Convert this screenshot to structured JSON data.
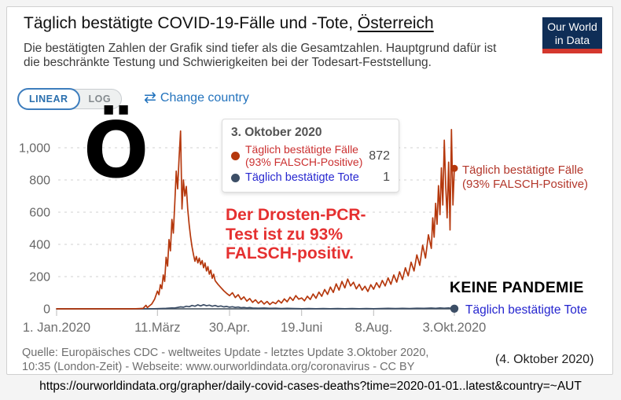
{
  "header": {
    "title_main": "Täglich bestätigte COVID-19-Fälle und -Tote, ",
    "title_country": "Österreich",
    "subtitle_line1": "Die bestätigten Zahlen der Grafik sind tiefer als die Gesamtzahlen. Hauptgrund dafür ist",
    "subtitle_line2": "die beschränkte Testung und Schwierigkeiten bei der Todesart-Feststellung.",
    "logo_line1": "Our World",
    "logo_line2": "in Data"
  },
  "controls": {
    "linear": "LINEAR",
    "log": "LOG",
    "change_country_icon": "⇄",
    "change_country": "Change country"
  },
  "tooltip": {
    "date": "3. Oktober 2020",
    "cases_label_line1": "Täglich bestätigte Fälle",
    "cases_label_line2": "(93% FALSCH-Positive)",
    "cases_value": "872",
    "deaths_label": "Täglich bestätigte Tote",
    "deaths_value": "1"
  },
  "annotations": {
    "big_letter": "Ö",
    "pcr_claim_line1": "Der Drosten-PCR-",
    "pcr_claim_line2": "Test ist zu 93%",
    "pcr_claim_line3": "FALSCH-positiv.",
    "no_pandemic": "KEINE PANDEMIE",
    "cases_series_label_line1": "Täglich bestätigte Fälle",
    "cases_series_label_line2": "(93% FALSCH-Positive)",
    "deaths_series_label": "Täglich bestätigte Tote",
    "date_note": "(4. Oktober 2020)"
  },
  "footer": {
    "source_line1": "Quelle: Europäisches CDC - weltweites Update - letztes Update 3.Oktober 2020,",
    "source_line2": "10:35 (London-Zeit) - Webseite: www.ourworldindata.org/coronavirus - CC BY",
    "url": "https://ourworldindata.org/grapher/daily-covid-cases-deaths?time=2020-01-01..latest&country=~AUT"
  },
  "colors": {
    "cases_line": "#b5380d",
    "deaths_line": "#3c4e66",
    "accent_blue": "#2373bd",
    "annotation_red": "#e53030",
    "logo_navy": "#0f2e57",
    "logo_red": "#d4382e"
  },
  "chart_data": {
    "type": "line",
    "title": "Täglich bestätigte COVID-19-Fälle und -Tote, Österreich",
    "xlabel": "",
    "ylabel": "",
    "grid": true,
    "ylim": [
      0,
      1150
    ],
    "xlim_days_since_2020_01_01": [
      0,
      276
    ],
    "y_ticks": [
      0,
      200,
      400,
      600,
      800,
      1000
    ],
    "y_tick_labels": [
      "0",
      "200",
      "400",
      "600",
      "800",
      "1,000"
    ],
    "x_ticks": [
      {
        "day": 0,
        "label": "1. Jan.2020"
      },
      {
        "day": 70,
        "label": "11.März"
      },
      {
        "day": 120,
        "label": "30.Apr."
      },
      {
        "day": 170,
        "label": "19.Juni"
      },
      {
        "day": 220,
        "label": "8.Aug."
      },
      {
        "day": 276,
        "label": "3.Okt.2020"
      }
    ],
    "series": [
      {
        "name": "Täglich bestätigte Fälle (93% FALSCH-Positive)",
        "color": "#b5380d",
        "end_value": 872,
        "points": [
          [
            0,
            0
          ],
          [
            10,
            0
          ],
          [
            20,
            0
          ],
          [
            30,
            0
          ],
          [
            40,
            0
          ],
          [
            50,
            0
          ],
          [
            55,
            1
          ],
          [
            58,
            2
          ],
          [
            60,
            3
          ],
          [
            62,
            22
          ],
          [
            63,
            8
          ],
          [
            64,
            15
          ],
          [
            66,
            30
          ],
          [
            68,
            60
          ],
          [
            70,
            110
          ],
          [
            71,
            88
          ],
          [
            72,
            150
          ],
          [
            73,
            125
          ],
          [
            74,
            210
          ],
          [
            75,
            170
          ],
          [
            76,
            320
          ],
          [
            77,
            265
          ],
          [
            78,
            430
          ],
          [
            79,
            360
          ],
          [
            80,
            555
          ],
          [
            81,
            470
          ],
          [
            82,
            650
          ],
          [
            83,
            855
          ],
          [
            84,
            745
          ],
          [
            85,
            935
          ],
          [
            86,
            1104
          ],
          [
            87,
            620
          ],
          [
            88,
            800
          ],
          [
            89,
            700
          ],
          [
            90,
            760
          ],
          [
            91,
            620
          ],
          [
            92,
            520
          ],
          [
            93,
            445
          ],
          [
            94,
            385
          ],
          [
            95,
            335
          ],
          [
            96,
            295
          ],
          [
            97,
            325
          ],
          [
            98,
            285
          ],
          [
            99,
            315
          ],
          [
            100,
            275
          ],
          [
            101,
            300
          ],
          [
            102,
            255
          ],
          [
            103,
            285
          ],
          [
            104,
            235
          ],
          [
            105,
            262
          ],
          [
            106,
            215
          ],
          [
            107,
            240
          ],
          [
            108,
            190
          ],
          [
            109,
            215
          ],
          [
            110,
            175
          ],
          [
            112,
            152
          ],
          [
            114,
            132
          ],
          [
            116,
            112
          ],
          [
            118,
            96
          ],
          [
            120,
            82
          ],
          [
            122,
            100
          ],
          [
            124,
            70
          ],
          [
            126,
            88
          ],
          [
            128,
            58
          ],
          [
            130,
            74
          ],
          [
            132,
            48
          ],
          [
            134,
            64
          ],
          [
            136,
            40
          ],
          [
            138,
            56
          ],
          [
            140,
            34
          ],
          [
            142,
            50
          ],
          [
            144,
            30
          ],
          [
            146,
            46
          ],
          [
            148,
            27
          ],
          [
            150,
            42
          ],
          [
            152,
            32
          ],
          [
            154,
            52
          ],
          [
            156,
            36
          ],
          [
            158,
            62
          ],
          [
            160,
            44
          ],
          [
            162,
            72
          ],
          [
            164,
            52
          ],
          [
            166,
            82
          ],
          [
            168,
            60
          ],
          [
            170,
            68
          ],
          [
            172,
            50
          ],
          [
            174,
            78
          ],
          [
            176,
            58
          ],
          [
            178,
            92
          ],
          [
            180,
            66
          ],
          [
            182,
            104
          ],
          [
            184,
            78
          ],
          [
            186,
            120
          ],
          [
            188,
            90
          ],
          [
            190,
            135
          ],
          [
            192,
            102
          ],
          [
            194,
            155
          ],
          [
            196,
            116
          ],
          [
            198,
            170
          ],
          [
            200,
            130
          ],
          [
            202,
            185
          ],
          [
            204,
            142
          ],
          [
            206,
            165
          ],
          [
            208,
            124
          ],
          [
            210,
            152
          ],
          [
            212,
            116
          ],
          [
            214,
            140
          ],
          [
            216,
            108
          ],
          [
            218,
            150
          ],
          [
            220,
            122
          ],
          [
            222,
            162
          ],
          [
            224,
            132
          ],
          [
            226,
            176
          ],
          [
            228,
            142
          ],
          [
            230,
            192
          ],
          [
            232,
            152
          ],
          [
            234,
            210
          ],
          [
            236,
            166
          ],
          [
            238,
            230
          ],
          [
            240,
            182
          ],
          [
            242,
            255
          ],
          [
            244,
            205
          ],
          [
            246,
            290
          ],
          [
            248,
            235
          ],
          [
            250,
            335
          ],
          [
            252,
            270
          ],
          [
            254,
            395
          ],
          [
            256,
            315
          ],
          [
            258,
            460
          ],
          [
            260,
            375
          ],
          [
            261,
            565
          ],
          [
            262,
            445
          ],
          [
            263,
            655
          ],
          [
            264,
            525
          ],
          [
            265,
            765
          ],
          [
            266,
            585
          ],
          [
            267,
            875
          ],
          [
            268,
            645
          ],
          [
            269,
            1047
          ],
          [
            270,
            765
          ],
          [
            271,
            565
          ],
          [
            272,
            910
          ],
          [
            273,
            490
          ],
          [
            274,
            1113
          ],
          [
            275,
            645
          ],
          [
            276,
            872
          ]
        ]
      },
      {
        "name": "Täglich bestätigte Tote",
        "color": "#3c4e66",
        "end_value": 1,
        "points": [
          [
            0,
            0
          ],
          [
            20,
            0
          ],
          [
            40,
            0
          ],
          [
            60,
            0
          ],
          [
            68,
            1
          ],
          [
            72,
            2
          ],
          [
            76,
            3
          ],
          [
            80,
            6
          ],
          [
            82,
            5
          ],
          [
            84,
            9
          ],
          [
            86,
            12
          ],
          [
            88,
            10
          ],
          [
            90,
            16
          ],
          [
            92,
            13
          ],
          [
            94,
            21
          ],
          [
            96,
            16
          ],
          [
            98,
            25
          ],
          [
            100,
            18
          ],
          [
            102,
            26
          ],
          [
            104,
            19
          ],
          [
            106,
            23
          ],
          [
            108,
            16
          ],
          [
            110,
            21
          ],
          [
            112,
            14
          ],
          [
            114,
            18
          ],
          [
            116,
            12
          ],
          [
            118,
            15
          ],
          [
            120,
            10
          ],
          [
            122,
            13
          ],
          [
            124,
            9
          ],
          [
            126,
            11
          ],
          [
            128,
            7
          ],
          [
            130,
            9
          ],
          [
            132,
            6
          ],
          [
            134,
            8
          ],
          [
            136,
            5
          ],
          [
            140,
            4
          ],
          [
            144,
            5
          ],
          [
            148,
            3
          ],
          [
            152,
            4
          ],
          [
            156,
            2
          ],
          [
            160,
            3
          ],
          [
            165,
            2
          ],
          [
            170,
            1
          ],
          [
            175,
            2
          ],
          [
            180,
            1
          ],
          [
            185,
            2
          ],
          [
            190,
            1
          ],
          [
            195,
            2
          ],
          [
            200,
            1
          ],
          [
            205,
            2
          ],
          [
            210,
            1
          ],
          [
            215,
            2
          ],
          [
            220,
            1
          ],
          [
            225,
            2
          ],
          [
            230,
            3
          ],
          [
            235,
            2
          ],
          [
            240,
            3
          ],
          [
            245,
            2
          ],
          [
            250,
            4
          ],
          [
            255,
            3
          ],
          [
            260,
            5
          ],
          [
            263,
            3
          ],
          [
            266,
            6
          ],
          [
            269,
            4
          ],
          [
            272,
            6
          ],
          [
            274,
            3
          ],
          [
            276,
            1
          ]
        ]
      }
    ]
  }
}
